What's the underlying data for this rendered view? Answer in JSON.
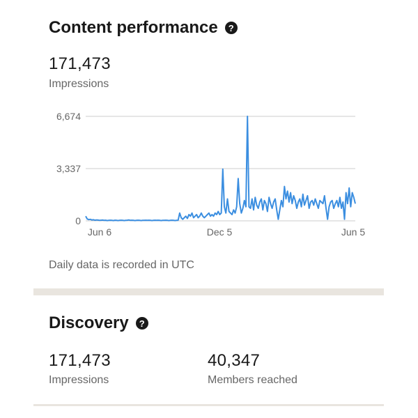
{
  "content_performance": {
    "title": "Content performance",
    "help_icon": "?",
    "impressions_value": "171,473",
    "impressions_label": "Impressions",
    "note": "Daily data is recorded in UTC"
  },
  "discovery": {
    "title": "Discovery",
    "help_icon": "?",
    "impressions_value": "171,473",
    "impressions_label": "Impressions",
    "members_value": "40,347",
    "members_label": "Members reached"
  },
  "colors": {
    "line": "#3b8ee0",
    "divider": "#e9e5df",
    "grid": "#cccccc"
  },
  "chart_data": {
    "type": "line",
    "x_tick_labels": [
      "Jun 6",
      "Dec 5",
      "Jun 5"
    ],
    "y_tick_labels": [
      "6,674",
      "3,337",
      "0"
    ],
    "ylim": [
      0,
      6674
    ],
    "grid": true,
    "series": [
      {
        "values": [
          300,
          120,
          80,
          100,
          60,
          70,
          40,
          60,
          50,
          30,
          40,
          50,
          30,
          40,
          20,
          30,
          40,
          30,
          20,
          40,
          30,
          20,
          30,
          40,
          30,
          20,
          30,
          40,
          60,
          30,
          40,
          30,
          20,
          30,
          40,
          30,
          20,
          30,
          30,
          40,
          30,
          40,
          30,
          20,
          30,
          40,
          30,
          40,
          30,
          20,
          30,
          30,
          40,
          30,
          20,
          30,
          40,
          30,
          20,
          30,
          40,
          500,
          200,
          100,
          200,
          300,
          150,
          400,
          300,
          500,
          200,
          300,
          400,
          200,
          300,
          500,
          300,
          200,
          300,
          400,
          500,
          300,
          400,
          300,
          500,
          400,
          600,
          400,
          500,
          3300,
          900,
          500,
          1400,
          600,
          500,
          400,
          700,
          500,
          900,
          2700,
          1100,
          500,
          800,
          1300,
          900,
          6674,
          900,
          800,
          1400,
          700,
          1500,
          1000,
          800,
          1200,
          1400,
          700,
          1300,
          1100,
          600,
          1500,
          1100,
          800,
          1200,
          1400,
          700,
          100,
          700,
          1300,
          900,
          2200,
          1400,
          1900,
          1200,
          1800,
          1100,
          1600,
          1300,
          800,
          1200,
          1400,
          900,
          1700,
          1000,
          1300,
          1600,
          800,
          1200,
          1300,
          1000,
          1400,
          1100,
          800,
          1300,
          1200,
          1100,
          1600,
          800,
          100,
          900,
          1200,
          1300,
          800,
          1100,
          1300,
          900,
          1500,
          800,
          1200,
          100,
          1800,
          1100,
          2100,
          900,
          1800,
          1500,
          1100
        ]
      }
    ]
  }
}
